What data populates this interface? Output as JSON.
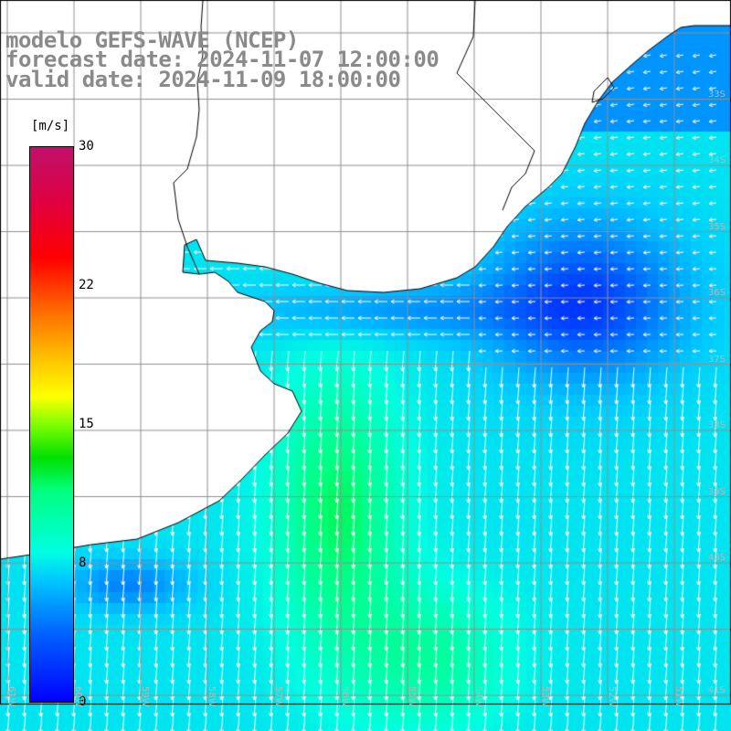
{
  "title": {
    "line1": "modelo GEFS-WAVE (NCEP)",
    "line2": "forecast date: 2024-11-07 12:00:00",
    "line3": "valid date: 2024-11-09 18:00:00"
  },
  "colorbar": {
    "units": "[m/s]",
    "ticks": [
      "30",
      "22",
      "15",
      "8",
      "0"
    ],
    "tick_values": [
      30,
      22,
      15,
      8,
      0
    ]
  },
  "latitude_labels": [
    "33S",
    "34S",
    "35S",
    "36S",
    "37S",
    "38S",
    "39S",
    "40S",
    "41S"
  ],
  "longitude_labels": [
    "61W",
    "60W",
    "59W",
    "58W",
    "57W",
    "56W",
    "55W",
    "54W",
    "53W",
    "52W",
    "51W"
  ],
  "colors": {
    "land": "#ffffff",
    "grid": "#909090",
    "coast": "#000000",
    "arrows": "#ffffff",
    "title_text": "#8a8a8a",
    "low_wind": "#1040f0",
    "mid_wind": "#00d8ff",
    "high_wind": "#10e070"
  }
}
